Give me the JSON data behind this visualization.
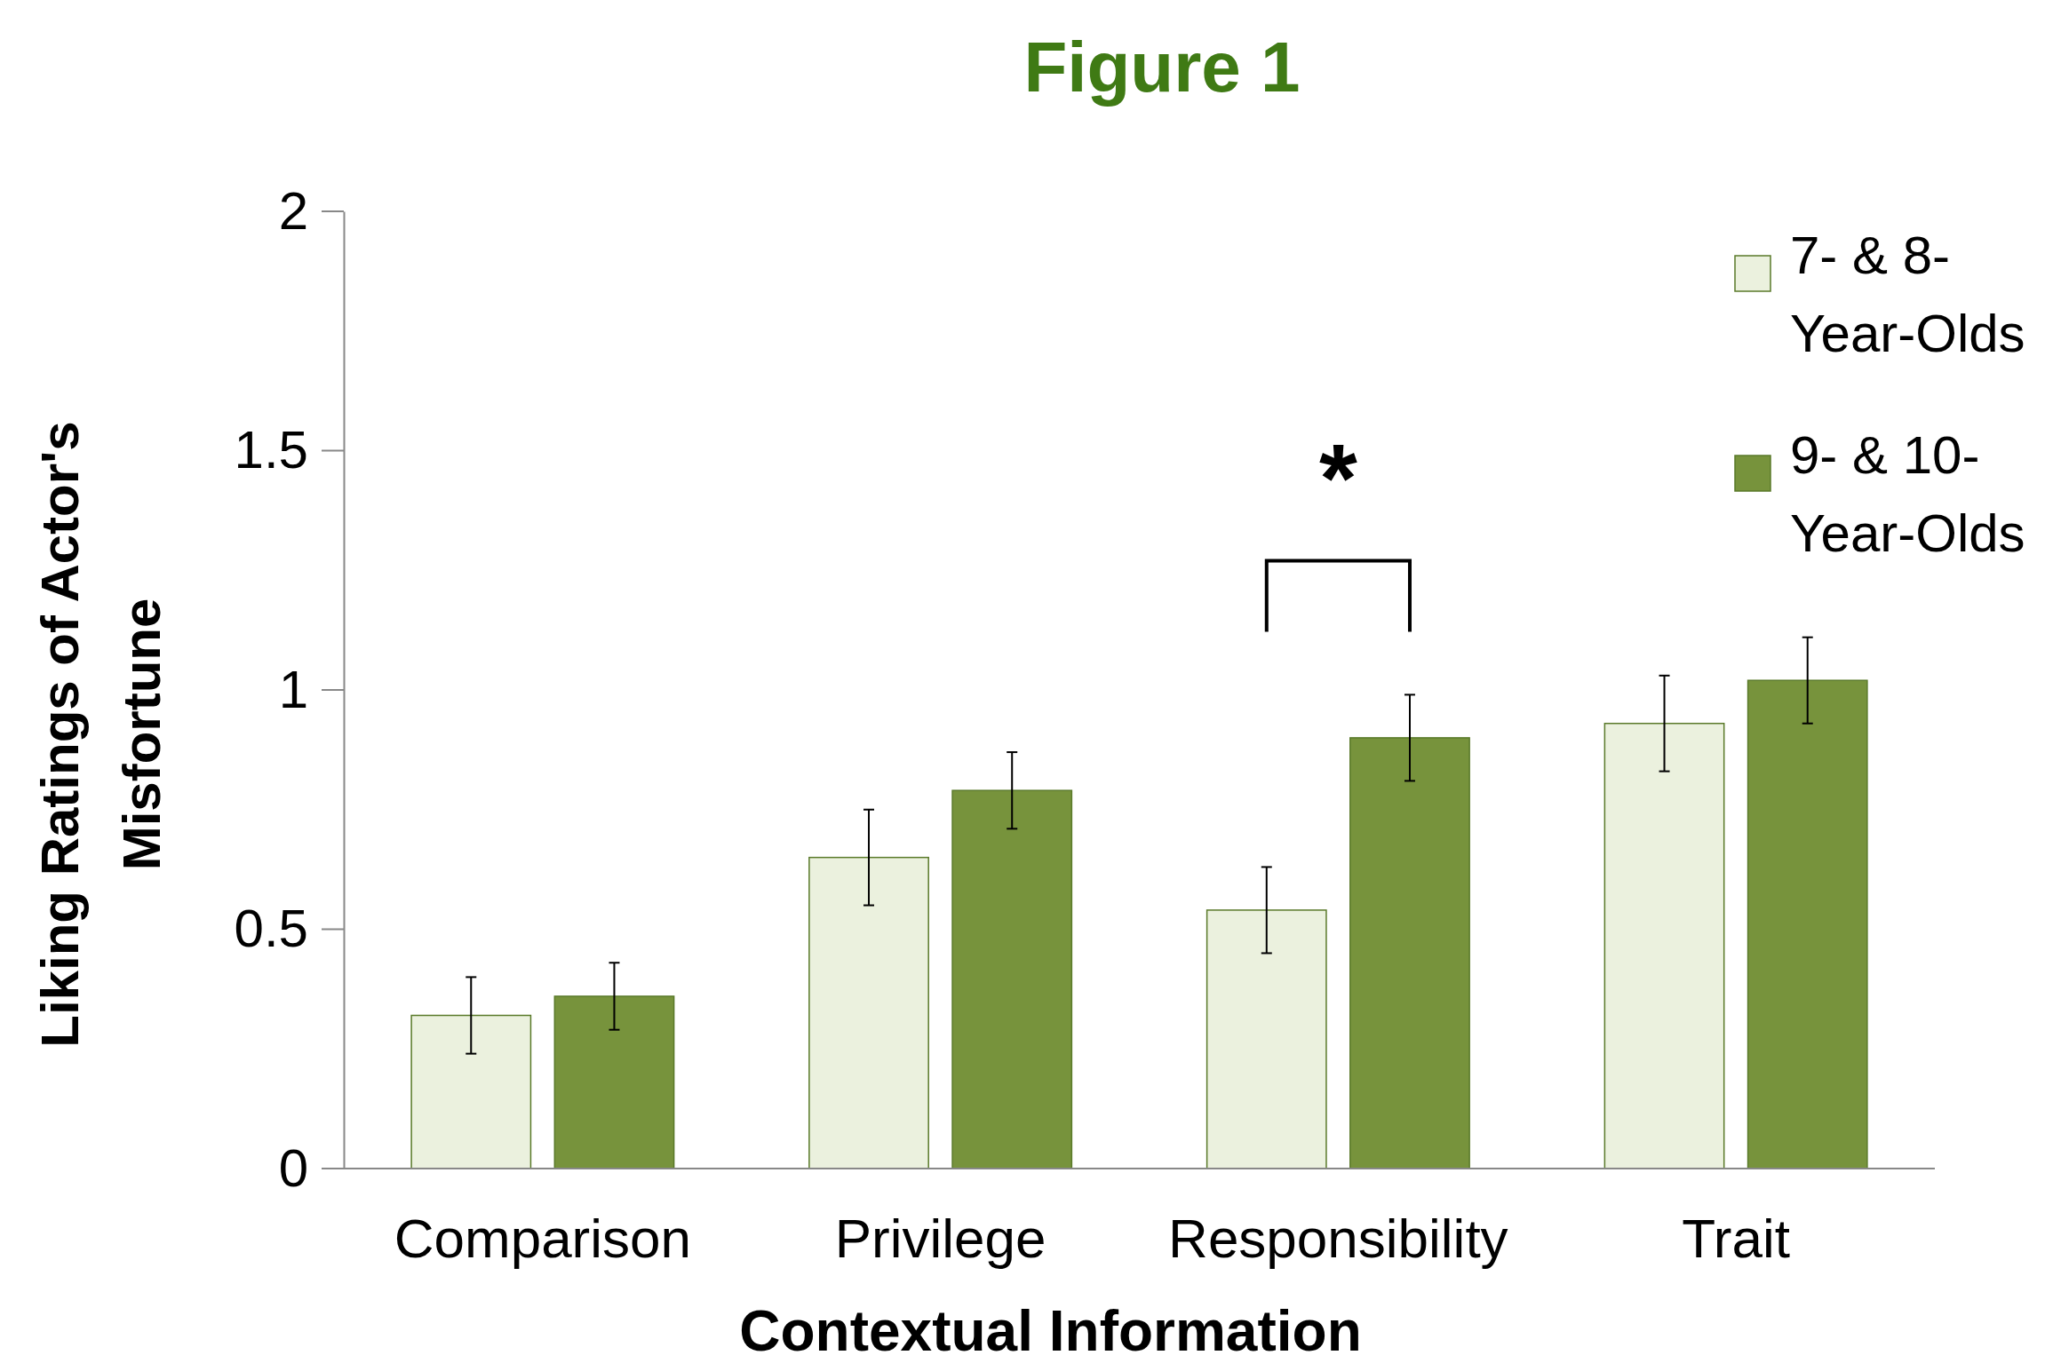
{
  "chart_data": {
    "type": "bar",
    "title": "Figure 1",
    "xlabel": "Contextual Information",
    "ylabel": "Liking Ratings of Actor's Misfortune",
    "categories": [
      "Comparison",
      "Privilege",
      "Responsibility",
      "Trait"
    ],
    "series": [
      {
        "name": "7- & 8-Year-Olds",
        "color": "#ebf1de",
        "values": [
          0.32,
          0.65,
          0.54,
          0.93
        ],
        "errors": [
          0.08,
          0.1,
          0.09,
          0.1
        ]
      },
      {
        "name": "9- & 10-Year-Olds",
        "color": "#77933c",
        "values": [
          0.36,
          0.79,
          0.9,
          1.02
        ],
        "errors": [
          0.07,
          0.08,
          0.09,
          0.09
        ]
      }
    ],
    "ylim": [
      0,
      2
    ],
    "yticks": [
      0,
      0.5,
      1,
      1.5,
      2
    ],
    "grid": false,
    "legend": "top right",
    "annotations": [
      "*"
    ]
  }
}
